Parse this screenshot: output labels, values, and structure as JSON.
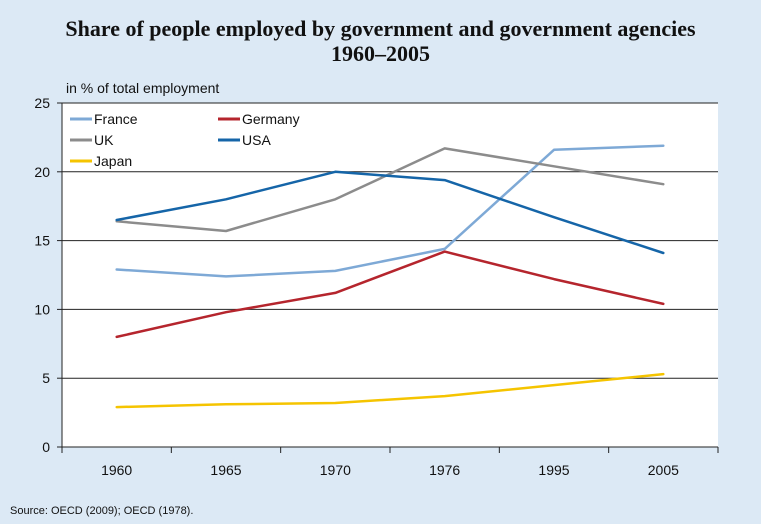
{
  "chart_data": {
    "type": "line",
    "title": "Share of people employed by government and government agencies",
    "subtitle": "1960–2005",
    "ylabel": "in % of total employment",
    "source": "Source: OECD (2009); OECD (1978).",
    "categories": [
      "1960",
      "1965",
      "1970",
      "1976",
      "1995",
      "2005"
    ],
    "ylim": [
      0,
      25
    ],
    "yticks": [
      "0",
      "5",
      "10",
      "15",
      "20",
      "25"
    ],
    "grid": true,
    "legend_position": "top-left",
    "series": [
      {
        "name": "France",
        "color": "#7ea9d6",
        "values": [
          12.9,
          12.4,
          12.8,
          14.4,
          21.6,
          21.9
        ]
      },
      {
        "name": "Germany",
        "color": "#b5252d",
        "values": [
          8.0,
          9.8,
          11.2,
          14.2,
          12.2,
          10.4
        ]
      },
      {
        "name": "UK",
        "color": "#8c8c8c",
        "values": [
          16.4,
          15.7,
          18.0,
          21.7,
          20.4,
          19.1
        ]
      },
      {
        "name": "USA",
        "color": "#1565a8",
        "values": [
          16.5,
          18.0,
          20.0,
          19.4,
          16.7,
          14.1
        ]
      },
      {
        "name": "Japan",
        "color": "#f5c400",
        "values": [
          2.9,
          3.1,
          3.2,
          3.7,
          4.5,
          5.3
        ]
      }
    ]
  }
}
